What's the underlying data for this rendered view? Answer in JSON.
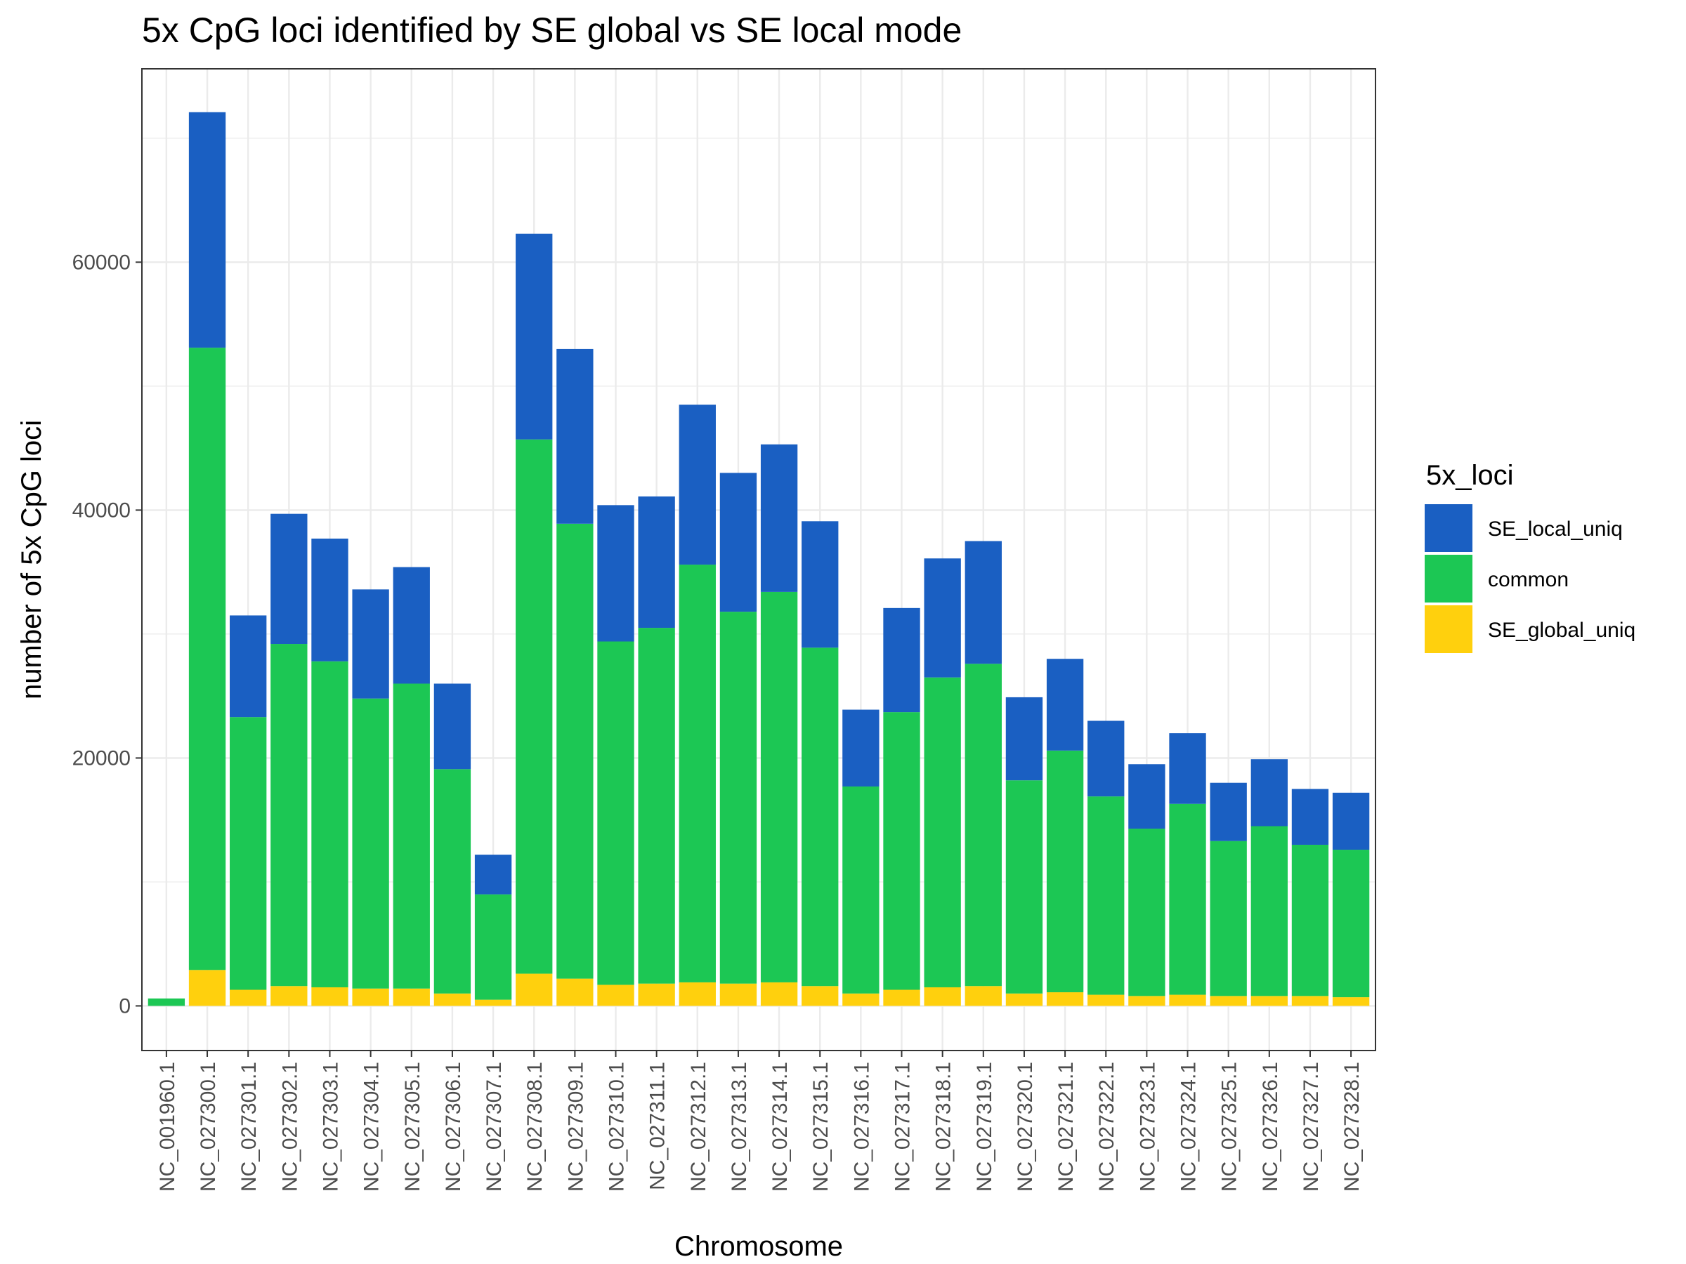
{
  "chart_data": {
    "type": "bar",
    "stacked": true,
    "title": "5x CpG loci identified by SE global vs SE local mode",
    "xlabel": "Chromosome",
    "ylabel": "number of 5x CpG loci",
    "ylim": [
      -3600,
      75600
    ],
    "yticks": [
      0,
      20000,
      40000,
      60000
    ],
    "grid": true,
    "legend": {
      "title": "5x_loci",
      "position": "right",
      "entries": [
        "SE_local_uniq",
        "common",
        "SE_global_uniq"
      ]
    },
    "categories": [
      "NC_001960.1",
      "NC_027300.1",
      "NC_027301.1",
      "NC_027302.1",
      "NC_027303.1",
      "NC_027304.1",
      "NC_027305.1",
      "NC_027306.1",
      "NC_027307.1",
      "NC_027308.1",
      "NC_027309.1",
      "NC_027310.1",
      "NC_027311.1",
      "NC_027312.1",
      "NC_027313.1",
      "NC_027314.1",
      "NC_027315.1",
      "NC_027316.1",
      "NC_027317.1",
      "NC_027318.1",
      "NC_027319.1",
      "NC_027320.1",
      "NC_027321.1",
      "NC_027322.1",
      "NC_027323.1",
      "NC_027324.1",
      "NC_027325.1",
      "NC_027326.1",
      "NC_027327.1",
      "NC_027328.1"
    ],
    "series": [
      {
        "name": "SE_global_uniq",
        "color": "#FFD00D",
        "values": [
          0,
          2900,
          1300,
          1600,
          1500,
          1400,
          1400,
          1000,
          500,
          2600,
          2200,
          1700,
          1800,
          1900,
          1800,
          1900,
          1600,
          1000,
          1300,
          1500,
          1600,
          1000,
          1100,
          900,
          800,
          900,
          800,
          800,
          800,
          700
        ]
      },
      {
        "name": "common",
        "color": "#1CC754",
        "values": [
          600,
          50200,
          22000,
          27600,
          26300,
          23400,
          24600,
          18100,
          8500,
          43100,
          36700,
          27700,
          28700,
          33700,
          30000,
          31500,
          27300,
          16700,
          22400,
          25000,
          26000,
          17200,
          19500,
          16000,
          13500,
          15400,
          12500,
          13700,
          12200,
          11900
        ]
      },
      {
        "name": "SE_local_uniq",
        "color": "#1A5FC2",
        "values": [
          0,
          19000,
          8200,
          10500,
          9900,
          8800,
          9400,
          6900,
          3200,
          16600,
          14100,
          11000,
          10600,
          12900,
          11200,
          11900,
          10200,
          6200,
          8400,
          9600,
          9900,
          6700,
          7400,
          6100,
          5200,
          5700,
          4700,
          5400,
          4500,
          4600
        ]
      }
    ]
  }
}
